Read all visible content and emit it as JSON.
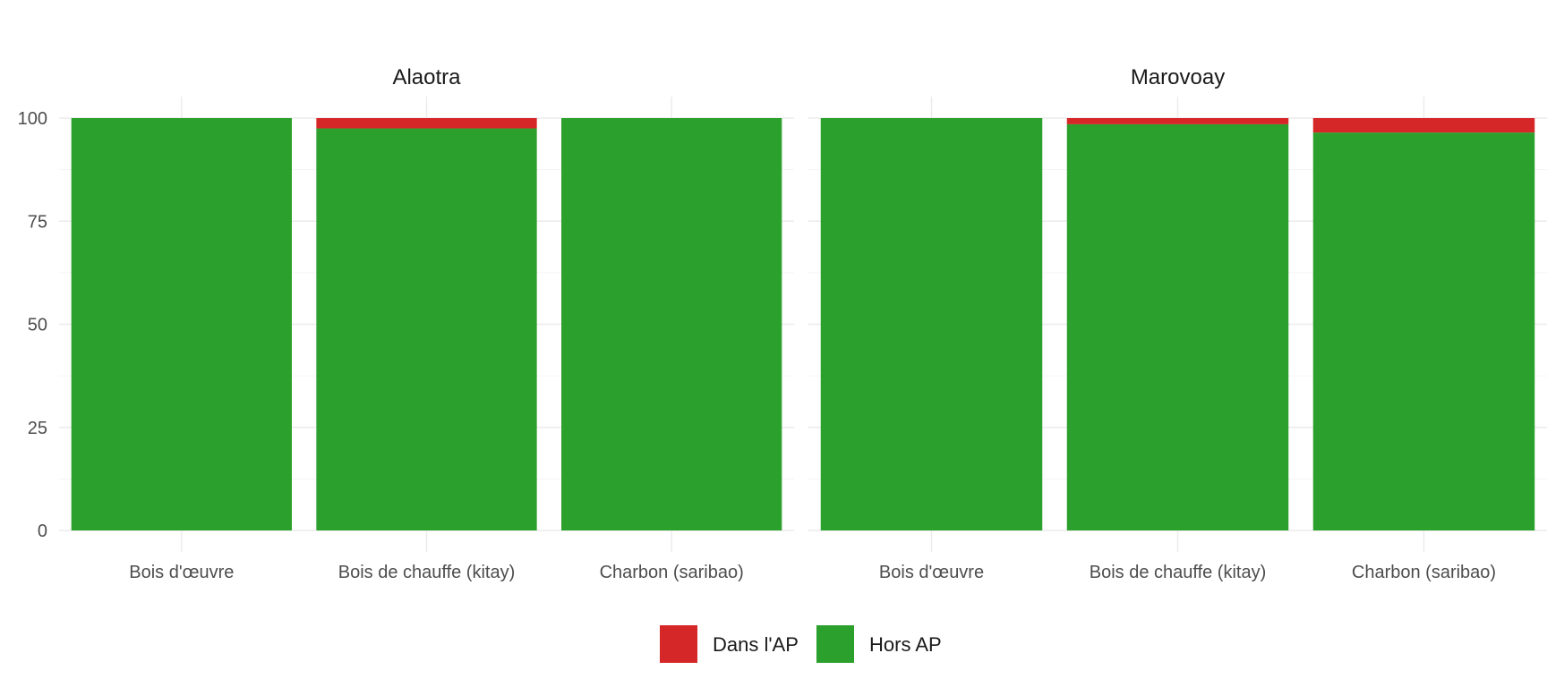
{
  "chart_data": {
    "type": "bar",
    "stacked": true,
    "facets": [
      "Alaotra",
      "Marovoay"
    ],
    "categories": [
      "Bois d'œuvre",
      "Bois de chauffe (kitay)",
      "Charbon (saribao)"
    ],
    "series": [
      {
        "name": "Dans l'AP",
        "color": "#D62728",
        "values": {
          "Alaotra": [
            0,
            2.5,
            0
          ],
          "Marovoay": [
            0,
            1.5,
            3.5
          ]
        }
      },
      {
        "name": "Hors AP",
        "color": "#2CA02C",
        "values": {
          "Alaotra": [
            100,
            97.5,
            100
          ],
          "Marovoay": [
            100,
            98.5,
            96.5
          ]
        }
      }
    ],
    "ylim": [
      0,
      100
    ],
    "yticks": [
      0,
      25,
      50,
      75,
      100
    ],
    "grid": true,
    "legend_position": "bottom",
    "xlabel": "",
    "ylabel": "",
    "title": ""
  }
}
